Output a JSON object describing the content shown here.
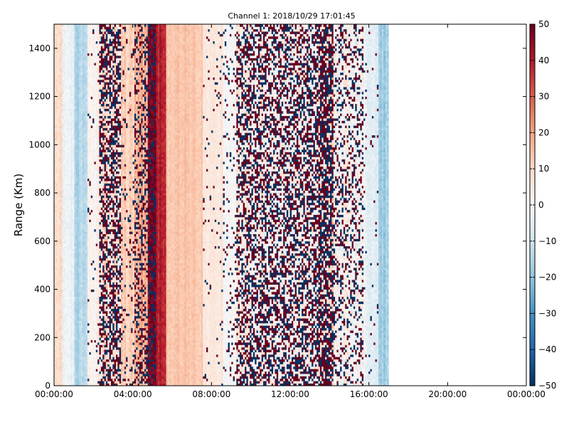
{
  "chart_data": {
    "type": "heatmap",
    "title": "Channel 1: 2018/10/29 17:01:45",
    "xlabel": "",
    "ylabel": "Range (Km)",
    "x_ticks": [
      "00:00:00",
      "04:00:00",
      "08:00:00",
      "12:00:00",
      "16:00:00",
      "20:00:00",
      "00:00:00"
    ],
    "x_range_hours": [
      0,
      24
    ],
    "y_ticks": [
      0,
      200,
      400,
      600,
      800,
      1000,
      1200,
      1400
    ],
    "ylim": [
      0,
      1500
    ],
    "colorbar": {
      "ticks": [
        50,
        40,
        30,
        20,
        10,
        0,
        -10,
        -20,
        -30,
        -40,
        -50
      ],
      "range": [
        -50,
        50
      ],
      "colormap": "RdBu_r",
      "colors": [
        "#053061",
        "#2166ac",
        "#4393c3",
        "#92c5de",
        "#d1e5f0",
        "#f7f7f7",
        "#fddbc7",
        "#f4a582",
        "#d6604d",
        "#b2182b",
        "#67001f"
      ]
    },
    "data_extent_hours": [
      0,
      17.0
    ],
    "bands": [
      {
        "start_h": 0.0,
        "end_h": 0.4,
        "mean": 8,
        "noise": 6,
        "scatter": 0.0
      },
      {
        "start_h": 0.4,
        "end_h": 1.0,
        "mean": -3,
        "noise": 5,
        "scatter": 0.0
      },
      {
        "start_h": 1.0,
        "end_h": 1.7,
        "mean": -15,
        "noise": 5,
        "scatter": 0.0
      },
      {
        "start_h": 1.7,
        "end_h": 2.3,
        "mean": 2,
        "noise": 5,
        "scatter": 0.05
      },
      {
        "start_h": 2.3,
        "end_h": 3.4,
        "mean": 6,
        "noise": 12,
        "scatter": 0.55
      },
      {
        "start_h": 3.4,
        "end_h": 4.1,
        "mean": 12,
        "noise": 6,
        "scatter": 0.1
      },
      {
        "start_h": 4.1,
        "end_h": 4.8,
        "mean": 18,
        "noise": 8,
        "scatter": 0.35
      },
      {
        "start_h": 4.8,
        "end_h": 5.2,
        "mean": 45,
        "noise": 6,
        "scatter": 0.55
      },
      {
        "start_h": 5.2,
        "end_h": 5.7,
        "mean": 40,
        "noise": 6,
        "scatter": 0.0
      },
      {
        "start_h": 5.7,
        "end_h": 7.6,
        "mean": 14,
        "noise": 4,
        "scatter": 0.0
      },
      {
        "start_h": 7.6,
        "end_h": 8.6,
        "mean": 6,
        "noise": 4,
        "scatter": 0.04
      },
      {
        "start_h": 8.6,
        "end_h": 9.3,
        "mean": 0,
        "noise": 5,
        "scatter": 0.12
      },
      {
        "start_h": 9.3,
        "end_h": 13.4,
        "mean": 2,
        "noise": 12,
        "scatter": 0.5
      },
      {
        "start_h": 13.4,
        "end_h": 14.2,
        "mean": 10,
        "noise": 10,
        "scatter": 0.7
      },
      {
        "start_h": 14.2,
        "end_h": 15.7,
        "mean": 0,
        "noise": 12,
        "scatter": 0.3
      },
      {
        "start_h": 15.7,
        "end_h": 16.5,
        "mean": -5,
        "noise": 6,
        "scatter": 0.04
      },
      {
        "start_h": 16.5,
        "end_h": 17.0,
        "mean": -18,
        "noise": 6,
        "scatter": 0.0
      }
    ]
  }
}
